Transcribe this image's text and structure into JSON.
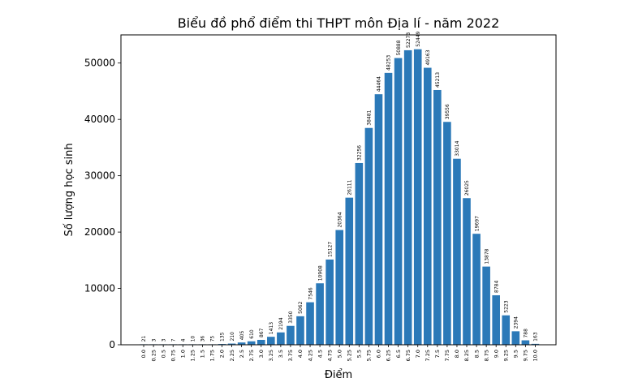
{
  "chart_data": {
    "type": "bar",
    "title": "Biểu đồ phổ điểm thi THPT môn Địa lí - năm 2022",
    "xlabel": "Điểm",
    "ylabel": "Số lượng học sinh",
    "categories": [
      "0.0",
      "0.25",
      "0.5",
      "0.75",
      "1.0",
      "1.25",
      "1.5",
      "1.75",
      "2.0",
      "2.25",
      "2.5",
      "2.75",
      "3.0",
      "3.25",
      "3.5",
      "3.75",
      "4.0",
      "4.25",
      "4.5",
      "4.75",
      "5.0",
      "5.25",
      "5.5",
      "5.75",
      "6.0",
      "6.25",
      "6.5",
      "6.75",
      "7.0",
      "7.25",
      "7.5",
      "7.75",
      "8.0",
      "8.25",
      "8.5",
      "8.75",
      "9.0",
      "9.25",
      "9.5",
      "9.75",
      "10.0"
    ],
    "values": [
      21,
      3,
      3,
      7,
      4,
      10,
      36,
      75,
      135,
      210,
      405,
      610,
      867,
      1413,
      2194,
      3350,
      5062,
      7546,
      10908,
      15127,
      20364,
      26111,
      32256,
      38481,
      44464,
      48253,
      50888,
      52273,
      52449,
      49163,
      45213,
      39556,
      33014,
      26025,
      19697,
      13878,
      8784,
      5223,
      2394,
      788,
      163
    ],
    "ylim": [
      0,
      55000
    ],
    "yticks": [
      0,
      10000,
      20000,
      30000,
      40000,
      50000
    ],
    "bar_color": "#2b79b8",
    "grid": false
  }
}
